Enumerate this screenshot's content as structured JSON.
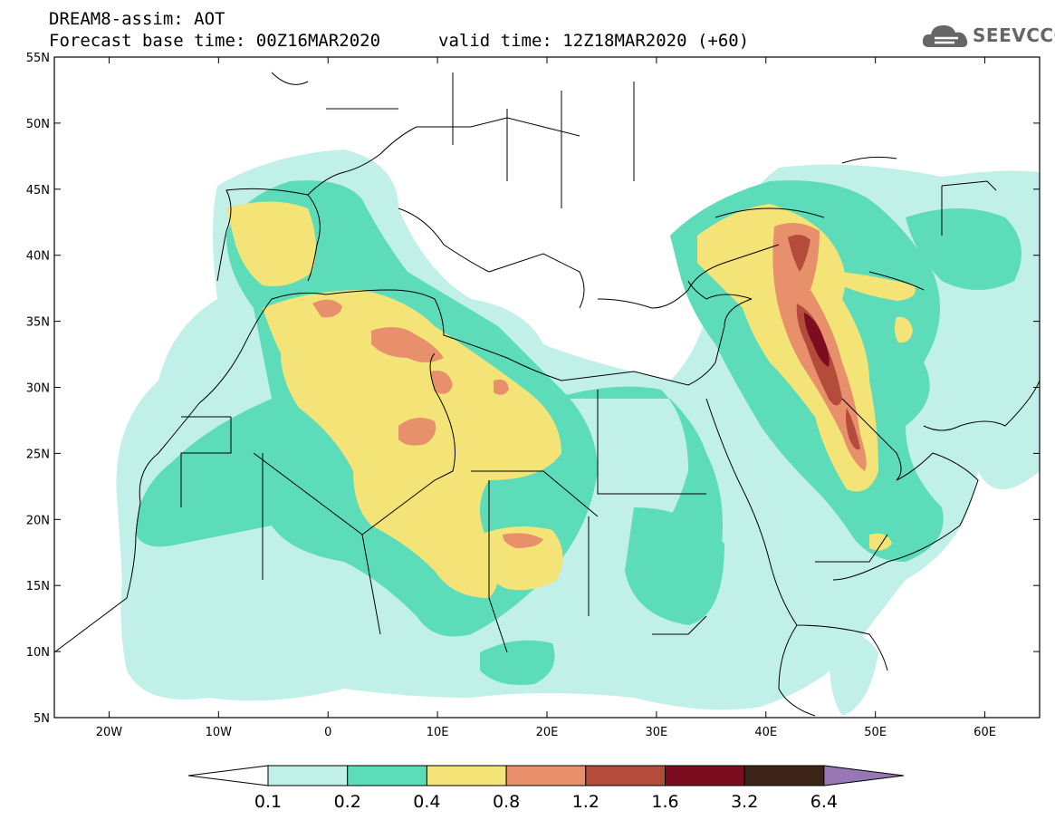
{
  "header": {
    "model_line": "DREAM8-assim: AOT",
    "base_time_line": "Forecast base time: 00Z16MAR2020",
    "valid_time_line": "valid time: 12Z18MAR2020 (+60)"
  },
  "logo": {
    "text": "SEEVCCC",
    "icon": "cloud-icon"
  },
  "map": {
    "extent": {
      "lon": [
        -25,
        65
      ],
      "lat": [
        5,
        55
      ]
    },
    "lat_ticks": [
      {
        "value": 55,
        "label": "55N"
      },
      {
        "value": 50,
        "label": "50N"
      },
      {
        "value": 45,
        "label": "45N"
      },
      {
        "value": 40,
        "label": "40N"
      },
      {
        "value": 35,
        "label": "35N"
      },
      {
        "value": 30,
        "label": "30N"
      },
      {
        "value": 25,
        "label": "25N"
      },
      {
        "value": 20,
        "label": "20N"
      },
      {
        "value": 15,
        "label": "15N"
      },
      {
        "value": 10,
        "label": "10N"
      },
      {
        "value": 5,
        "label": "5N"
      }
    ],
    "lon_ticks": [
      {
        "value": -20,
        "label": "20W"
      },
      {
        "value": -10,
        "label": "10W"
      },
      {
        "value": 0,
        "label": "0"
      },
      {
        "value": 10,
        "label": "10E"
      },
      {
        "value": 20,
        "label": "20E"
      },
      {
        "value": 30,
        "label": "30E"
      },
      {
        "value": 40,
        "label": "40E"
      },
      {
        "value": 50,
        "label": "50E"
      },
      {
        "value": 60,
        "label": "60E"
      }
    ],
    "colors": {
      "c01": "#c0f0e8",
      "c02": "#5cdcb8",
      "c04": "#f4e478",
      "c08": "#e8906c",
      "c12": "#b44c3c",
      "c16": "#7c0c20",
      "c32": "#3c2418",
      "c64": "#9878b4"
    }
  },
  "colorbar": {
    "bins": [
      {
        "color": "#c0f0e8"
      },
      {
        "color": "#5cdcb8"
      },
      {
        "color": "#f4e478"
      },
      {
        "color": "#e8906c"
      },
      {
        "color": "#b44c3c"
      },
      {
        "color": "#7c0c20"
      },
      {
        "color": "#3c2418"
      }
    ],
    "low_arrow_color": "#ffffff",
    "high_arrow_color": "#9878b4",
    "labels": [
      "0.1",
      "0.2",
      "0.4",
      "0.8",
      "1.2",
      "1.6",
      "3.2",
      "6.4"
    ]
  }
}
